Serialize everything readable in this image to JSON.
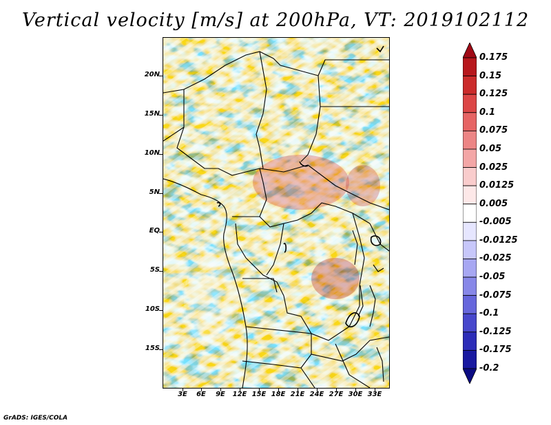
{
  "title": "Vertical velocity [m/s] at 200hPa, VT: 2019102112",
  "credit": "GrADS: IGES/COLA",
  "lat_labels": [
    "20N",
    "15N",
    "10N",
    "5N",
    "EQ",
    "5S",
    "10S",
    "15S"
  ],
  "lon_labels": [
    "3E",
    "6E",
    "9E",
    "12E",
    "15E",
    "18E",
    "21E",
    "24E",
    "27E",
    "30E",
    "33E"
  ],
  "colorbar": {
    "labels": [
      "0.175",
      "0.15",
      "0.125",
      "0.1",
      "0.075",
      "0.05",
      "0.025",
      "0.0125",
      "0.005",
      "-0.005",
      "-0.0125",
      "-0.025",
      "-0.05",
      "-0.075",
      "-0.1",
      "-0.125",
      "-0.175",
      "-0.2"
    ],
    "colors": [
      "#a00a16",
      "#b7171c",
      "#cb2b2b",
      "#dc4646",
      "#e66464",
      "#ec8585",
      "#f3a6a6",
      "#f9cccc",
      "#fde8e8",
      "#ffffff",
      "#e6e6ff",
      "#c7c7fa",
      "#a7a7f2",
      "#8787e8",
      "#6666dc",
      "#4747cc",
      "#2c2cb8",
      "#1818a0",
      "#0b0b82"
    ]
  }
}
